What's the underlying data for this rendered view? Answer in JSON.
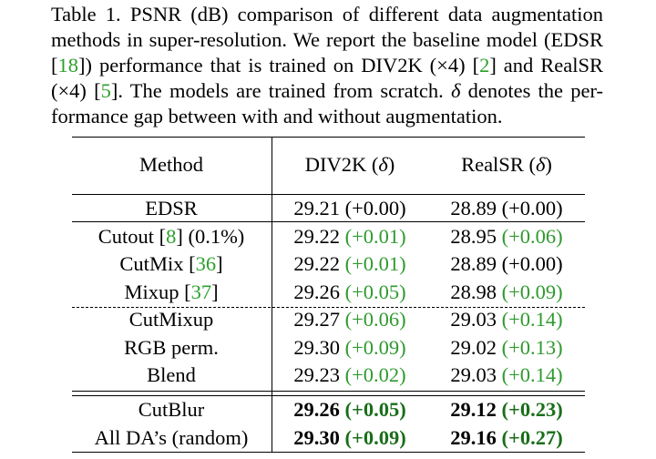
{
  "caption": {
    "line1": "Table 1. PSNR (dB) comparison of different data augmentation",
    "line2": "methods in super-resolution. We report the baseline model (EDSR",
    "line3a": "[",
    "line3_cite1": "18",
    "line3b": "]) performance that is trained on DIV2K (×4) [",
    "line3_cite2": "2",
    "line3c": "] and RealSR",
    "line4a": "(×4) [",
    "line4_cite": "5",
    "line4b": "]. The models are trained from scratch. ",
    "line4_delta": "δ",
    "line4c": " denotes the per-",
    "line5": "formance gap between with and without augmentation."
  },
  "table": {
    "headers": {
      "method": "Method",
      "div2k_a": "DIV2K (",
      "div2k_delta": "δ",
      "div2k_b": ")",
      "realsr_a": "RealSR (",
      "realsr_delta": "δ",
      "realsr_b": ")"
    },
    "rows": [
      {
        "method": "EDSR",
        "cite": "",
        "suffix": "",
        "d_val": "29.21",
        "d_gap": "(+0.00)",
        "d_style": "plain",
        "r_val": "28.89",
        "r_gap": "(+0.00)",
        "r_style": "plain"
      },
      {
        "method": "Cutout [",
        "cite": "8",
        "suffix": "] (0.1%)",
        "d_val": "29.22",
        "d_gap": "(+0.01)",
        "d_style": "green",
        "r_val": "28.95",
        "r_gap": "(+0.06)",
        "r_style": "green"
      },
      {
        "method": "CutMix [",
        "cite": "36",
        "suffix": "]",
        "d_val": "29.22",
        "d_gap": "(+0.01)",
        "d_style": "green",
        "r_val": "28.89",
        "r_gap": "(+0.00)",
        "r_style": "plain"
      },
      {
        "method": "Mixup [",
        "cite": "37",
        "suffix": "]",
        "d_val": "29.26",
        "d_gap": "(+0.05)",
        "d_style": "green",
        "r_val": "28.98",
        "r_gap": "(+0.09)",
        "r_style": "green"
      },
      {
        "method": "CutMixup",
        "cite": "",
        "suffix": "",
        "d_val": "29.27",
        "d_gap": "(+0.06)",
        "d_style": "green",
        "r_val": "29.03",
        "r_gap": "(+0.14)",
        "r_style": "green"
      },
      {
        "method": "RGB perm.",
        "cite": "",
        "suffix": "",
        "d_val": "29.30",
        "d_gap": "(+0.09)",
        "d_style": "green",
        "r_val": "29.02",
        "r_gap": "(+0.13)",
        "r_style": "green"
      },
      {
        "method": "Blend",
        "cite": "",
        "suffix": "",
        "d_val": "29.23",
        "d_gap": "(+0.02)",
        "d_style": "green",
        "r_val": "29.03",
        "r_gap": "(+0.14)",
        "r_style": "green"
      },
      {
        "method": "CutBlur",
        "cite": "",
        "suffix": "",
        "d_val": "29.26",
        "d_gap": "(+0.05)",
        "d_style": "bold",
        "r_val": "29.12",
        "r_gap": "(+0.23)",
        "r_style": "bold"
      },
      {
        "method": "All DA’s (random)",
        "cite": "",
        "suffix": "",
        "d_val": "29.30",
        "d_gap": "(+0.09)",
        "d_style": "bold",
        "r_val": "29.16",
        "r_gap": "(+0.27)",
        "r_style": "bold"
      }
    ]
  }
}
